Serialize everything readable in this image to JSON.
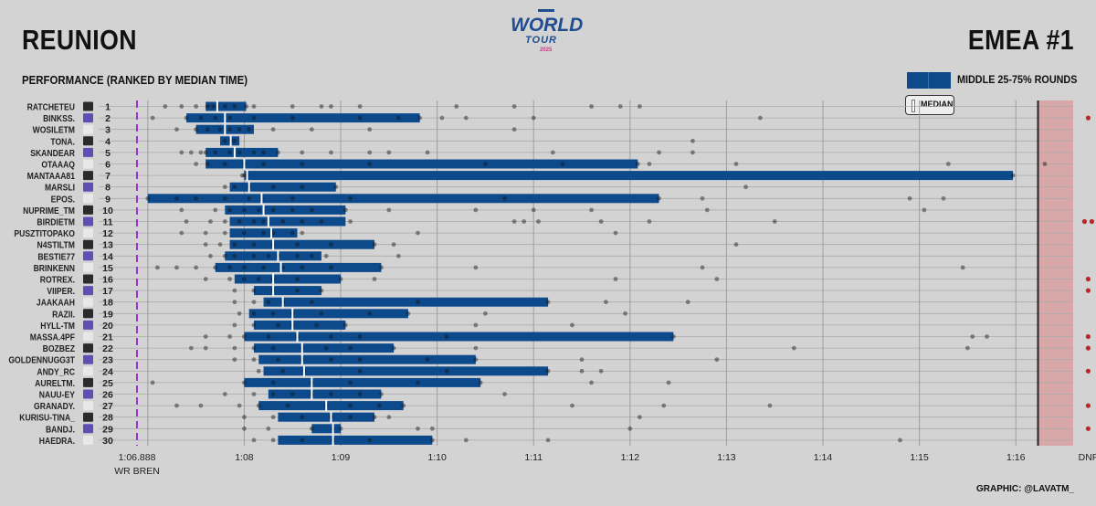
{
  "header": {
    "title_left": "REUNION",
    "title_right": "EMEA #1",
    "subtitle": "PERFORMANCE (RANKED BY MEDIAN TIME)",
    "logo_world": "WORLD",
    "logo_tour": "TOUR",
    "logo_year": "2025",
    "credit": "GRAPHIC: @LAVATM_"
  },
  "legend": {
    "box_label": "MIDDLE 25-75% ROUNDS",
    "median_label": "MEDIAN"
  },
  "colors": {
    "bar": "#0c4a8c",
    "dnf_zone": "#d8a8a8",
    "wr_line": "#9b30d9",
    "dnf_dot": "#c0252a"
  },
  "chart_data": {
    "type": "boxplot",
    "x_unit": "seconds",
    "xlim": [
      66.2,
      77.3
    ],
    "x_ticks": [
      {
        "v": 66.888,
        "label": "1:06.888",
        "sublabel": "WR BREN"
      },
      {
        "v": 68,
        "label": "1:08"
      },
      {
        "v": 69,
        "label": "1:09"
      },
      {
        "v": 70,
        "label": "1:10"
      },
      {
        "v": 71,
        "label": "1:11"
      },
      {
        "v": 72,
        "label": "1:12"
      },
      {
        "v": 73,
        "label": "1:13"
      },
      {
        "v": 74,
        "label": "1:14"
      },
      {
        "v": 75,
        "label": "1:15"
      },
      {
        "v": 76,
        "label": "1:16"
      },
      {
        "v": 76.75,
        "label": "DNF"
      }
    ],
    "wr_value": 66.888,
    "dnf_start": 76.23,
    "players": [
      {
        "rank": "1",
        "name": "RATCHETEU",
        "q1": 67.6,
        "median": 67.72,
        "q3": 68.02,
        "pts": [
          67.18,
          67.35,
          67.5,
          67.62,
          67.68,
          67.72,
          67.8,
          67.9,
          68.02,
          68.1,
          68.5,
          68.8,
          68.9,
          69.2,
          70.2,
          70.8,
          71.6,
          71.9,
          72.1
        ],
        "dnf": 0
      },
      {
        "rank": "2",
        "name": "BINKSS.",
        "q1": 67.4,
        "median": 67.8,
        "q3": 69.82,
        "pts": [
          67.05,
          67.4,
          67.55,
          67.7,
          67.85,
          68.1,
          68.5,
          69.2,
          69.6,
          69.82,
          70.05,
          70.3,
          71.0,
          73.35
        ],
        "dnf": 1
      },
      {
        "rank": "3",
        "name": "WOSILETM",
        "q1": 67.5,
        "median": 67.8,
        "q3": 68.1,
        "pts": [
          67.3,
          67.5,
          67.62,
          67.75,
          67.85,
          67.95,
          68.05,
          68.3,
          68.7,
          69.3,
          70.8
        ],
        "dnf": 0
      },
      {
        "rank": "4",
        "name": "TONA.",
        "q1": 67.75,
        "median": 67.86,
        "q3": 67.95,
        "pts": [
          67.8,
          67.86,
          67.9,
          72.65
        ],
        "dnf": 0
      },
      {
        "rank": "5",
        "name": "SKANDEAR",
        "q1": 67.6,
        "median": 67.9,
        "q3": 68.35,
        "pts": [
          67.35,
          67.45,
          67.55,
          67.6,
          67.7,
          67.85,
          67.95,
          68.1,
          68.2,
          68.35,
          68.6,
          68.9,
          69.3,
          69.5,
          69.9,
          71.2,
          72.3,
          72.65
        ],
        "dnf": 0
      },
      {
        "rank": "6",
        "name": "OTAAAQ",
        "q1": 67.6,
        "median": 68.0,
        "q3": 72.08,
        "pts": [
          67.5,
          67.62,
          67.8,
          68.0,
          68.2,
          68.6,
          69.3,
          70.5,
          71.3,
          72.08,
          72.2,
          73.1,
          75.3,
          76.3
        ],
        "dnf": 0
      },
      {
        "rank": "7",
        "name": "MANTAAA81",
        "q1": 68.0,
        "median": 68.03,
        "q3": 75.97,
        "pts": [
          67.98,
          68.0,
          68.03,
          75.97
        ],
        "dnf": 0
      },
      {
        "rank": "8",
        "name": "MARSLI",
        "q1": 67.85,
        "median": 68.05,
        "q3": 68.95,
        "pts": [
          67.8,
          67.9,
          68.05,
          68.3,
          68.6,
          68.95,
          73.2
        ],
        "dnf": 0
      },
      {
        "rank": "9",
        "name": "EPOS.",
        "q1": 67.0,
        "median": 68.18,
        "q3": 72.3,
        "pts": [
          67.0,
          67.3,
          67.5,
          67.8,
          68.05,
          68.18,
          68.5,
          69.1,
          70.7,
          72.3,
          72.75,
          74.9,
          75.25
        ],
        "dnf": 0
      },
      {
        "rank": "10",
        "name": "NUPRIME_TM",
        "q1": 67.8,
        "median": 68.2,
        "q3": 69.05,
        "pts": [
          67.35,
          67.7,
          67.85,
          68.0,
          68.15,
          68.3,
          68.5,
          68.7,
          69.05,
          69.5,
          70.4,
          71.0,
          71.6,
          72.8,
          75.05
        ],
        "dnf": 0
      },
      {
        "rank": "11",
        "name": "BIRDIETM",
        "q1": 67.85,
        "median": 68.25,
        "q3": 69.05,
        "pts": [
          67.4,
          67.65,
          67.8,
          67.95,
          68.1,
          68.2,
          68.4,
          68.6,
          68.8,
          69.1,
          70.9,
          70.8,
          71.05,
          71.7,
          72.2,
          73.5
        ],
        "dnf": 2
      },
      {
        "rank": "12",
        "name": "PUSZTITOPAKO",
        "q1": 67.85,
        "median": 68.28,
        "q3": 68.55,
        "pts": [
          67.35,
          67.6,
          67.8,
          68.0,
          68.2,
          68.3,
          68.5,
          68.6,
          69.8,
          71.85
        ],
        "dnf": 0
      },
      {
        "rank": "13",
        "name": "N4STILTM",
        "q1": 67.85,
        "median": 68.3,
        "q3": 69.35,
        "pts": [
          67.6,
          67.75,
          67.9,
          68.1,
          68.3,
          68.55,
          68.9,
          69.35,
          69.55,
          73.1
        ],
        "dnf": 0
      },
      {
        "rank": "14",
        "name": "BESTIE77",
        "q1": 67.8,
        "median": 68.35,
        "q3": 68.8,
        "pts": [
          67.65,
          67.8,
          67.9,
          68.1,
          68.25,
          68.35,
          68.55,
          68.7,
          68.85,
          69.6
        ],
        "dnf": 0
      },
      {
        "rank": "15",
        "name": "BRINKENN",
        "q1": 67.7,
        "median": 68.38,
        "q3": 69.42,
        "pts": [
          67.1,
          67.3,
          67.5,
          67.7,
          67.85,
          68.0,
          68.2,
          68.4,
          68.6,
          68.9,
          69.42,
          70.4,
          72.75,
          75.45
        ],
        "dnf": 0
      },
      {
        "rank": "16",
        "name": "ROTREX.",
        "q1": 67.9,
        "median": 68.3,
        "q3": 69.0,
        "pts": [
          67.6,
          67.85,
          68.0,
          68.15,
          68.3,
          68.55,
          69.0,
          69.35,
          71.85,
          72.9
        ],
        "dnf": 1
      },
      {
        "rank": "17",
        "name": "VIIPER.",
        "q1": 68.1,
        "median": 68.3,
        "q3": 68.8,
        "pts": [
          67.9,
          68.1,
          68.3,
          68.55,
          68.8
        ],
        "dnf": 1
      },
      {
        "rank": "18",
        "name": "JAAKAAH",
        "q1": 68.2,
        "median": 68.4,
        "q3": 71.15,
        "pts": [
          67.9,
          68.1,
          68.25,
          68.4,
          68.7,
          69.8,
          71.15,
          71.75,
          72.6
        ],
        "dnf": 0
      },
      {
        "rank": "19",
        "name": "RAZII.",
        "q1": 68.05,
        "median": 68.5,
        "q3": 69.7,
        "pts": [
          67.95,
          68.1,
          68.3,
          68.5,
          68.8,
          69.3,
          69.7,
          70.5,
          71.95
        ],
        "dnf": 0
      },
      {
        "rank": "20",
        "name": "HYLL-TM",
        "q1": 68.1,
        "median": 68.5,
        "q3": 69.05,
        "pts": [
          67.9,
          68.1,
          68.35,
          68.5,
          68.75,
          69.05,
          70.4,
          71.4
        ],
        "dnf": 0
      },
      {
        "rank": "21",
        "name": "MASSA.4PF",
        "q1": 68.0,
        "median": 68.55,
        "q3": 72.45,
        "pts": [
          67.6,
          67.85,
          68.0,
          68.25,
          68.55,
          68.9,
          69.2,
          70.1,
          72.45,
          75.55,
          75.7
        ],
        "dnf": 1
      },
      {
        "rank": "22",
        "name": "BOZBEZ",
        "q1": 68.1,
        "median": 68.6,
        "q3": 69.55,
        "pts": [
          67.45,
          67.6,
          67.9,
          68.1,
          68.3,
          68.6,
          68.85,
          69.1,
          69.55,
          70.4,
          73.7,
          75.5
        ],
        "dnf": 1
      },
      {
        "rank": "23",
        "name": "GOLDENNUGG3T",
        "q1": 68.15,
        "median": 68.6,
        "q3": 70.4,
        "pts": [
          67.9,
          68.1,
          68.35,
          68.6,
          68.9,
          69.2,
          69.9,
          70.4,
          71.5,
          72.9
        ],
        "dnf": 0
      },
      {
        "rank": "24",
        "name": "ANDY_RC",
        "q1": 68.2,
        "median": 68.62,
        "q3": 71.15,
        "pts": [
          68.15,
          68.4,
          68.62,
          69.2,
          70.1,
          71.15,
          71.5,
          71.7
        ],
        "dnf": 1
      },
      {
        "rank": "25",
        "name": "AURELTM.",
        "q1": 68.0,
        "median": 68.7,
        "q3": 70.45,
        "pts": [
          67.05,
          68.0,
          68.3,
          68.7,
          69.1,
          69.8,
          70.45,
          71.6,
          72.4
        ],
        "dnf": 0
      },
      {
        "rank": "26",
        "name": "NAUU-EY",
        "q1": 68.25,
        "median": 68.7,
        "q3": 69.42,
        "pts": [
          67.8,
          68.1,
          68.3,
          68.5,
          68.7,
          68.9,
          69.2,
          69.42,
          70.7
        ],
        "dnf": 0
      },
      {
        "rank": "27",
        "name": "GRANADY.",
        "q1": 68.15,
        "median": 68.85,
        "q3": 69.65,
        "pts": [
          67.3,
          67.55,
          67.95,
          68.15,
          68.45,
          68.85,
          69.1,
          69.4,
          69.65,
          71.4,
          72.35,
          73.45
        ],
        "dnf": 1
      },
      {
        "rank": "28",
        "name": "KURISU-TINA_",
        "q1": 68.35,
        "median": 68.9,
        "q3": 69.35,
        "pts": [
          68.0,
          68.3,
          68.6,
          68.9,
          69.1,
          69.35,
          69.5,
          72.1
        ],
        "dnf": 0
      },
      {
        "rank": "29",
        "name": "BANDJ.",
        "q1": 68.7,
        "median": 68.92,
        "q3": 69.0,
        "pts": [
          68.0,
          68.25,
          68.7,
          68.92,
          69.0,
          69.8,
          69.95,
          72.0
        ],
        "dnf": 1
      },
      {
        "rank": "30",
        "name": "HAEDRA.",
        "q1": 68.35,
        "median": 68.92,
        "q3": 69.95,
        "pts": [
          68.1,
          68.3,
          68.6,
          68.92,
          69.3,
          69.95,
          70.3,
          71.15,
          74.8
        ],
        "dnf": 0
      }
    ]
  }
}
